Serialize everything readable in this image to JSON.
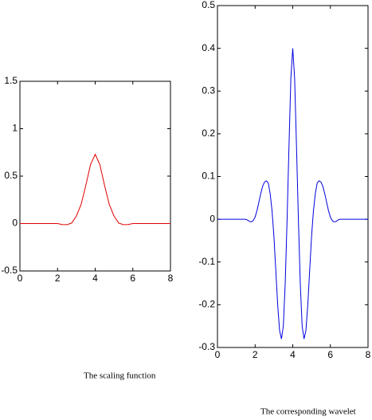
{
  "chart_data": [
    {
      "type": "line",
      "caption": "The scaling function",
      "xlim": [
        0,
        8
      ],
      "xticks": [
        0,
        2,
        4,
        6,
        8
      ],
      "ylim": [
        -0.5,
        1.5
      ],
      "yticks": [
        -0.5,
        0,
        0.5,
        1,
        1.5
      ],
      "series": [
        {
          "color": "#e00000",
          "x": [
            0,
            0.25,
            0.5,
            0.75,
            1,
            1.25,
            1.5,
            1.75,
            2,
            2.25,
            2.5,
            2.75,
            3,
            3.25,
            3.5,
            3.75,
            4,
            4.25,
            4.5,
            4.75,
            5,
            5.25,
            5.5,
            5.75,
            6,
            6.25,
            6.5,
            6.75,
            7,
            7.25,
            7.5,
            7.75,
            8
          ],
          "values": [
            0,
            0,
            0,
            0,
            0,
            0,
            0,
            0,
            0,
            -0.01,
            -0.012,
            0.005,
            0.08,
            0.2,
            0.4,
            0.62,
            0.73,
            0.62,
            0.4,
            0.2,
            0.08,
            0.005,
            -0.012,
            -0.01,
            0,
            0,
            0,
            0,
            0,
            0,
            0,
            0,
            0
          ]
        }
      ]
    },
    {
      "type": "line",
      "caption": "The corresponding wavelet",
      "xlim": [
        0,
        8
      ],
      "xticks": [
        0,
        2,
        4,
        6,
        8
      ],
      "ylim": [
        -0.3,
        0.5
      ],
      "yticks": [
        -0.3,
        -0.2,
        -0.1,
        0,
        0.1,
        0.2,
        0.3,
        0.4,
        0.5
      ],
      "series": [
        {
          "color": "#0000e0",
          "x": [
            0,
            0.5,
            1,
            1.5,
            1.6,
            1.7,
            1.8,
            1.9,
            2.0,
            2.1,
            2.2,
            2.3,
            2.4,
            2.5,
            2.6,
            2.7,
            2.8,
            2.9,
            3.0,
            3.1,
            3.2,
            3.3,
            3.4,
            3.5,
            3.6,
            3.7,
            3.8,
            3.9,
            4.0,
            4.1,
            4.2,
            4.3,
            4.4,
            4.5,
            4.6,
            4.7,
            4.8,
            4.9,
            5.0,
            5.1,
            5.2,
            5.3,
            5.4,
            5.5,
            5.6,
            5.7,
            5.8,
            5.9,
            6.0,
            6.1,
            6.2,
            6.3,
            6.4,
            6.5,
            7,
            7.5,
            8
          ],
          "values": [
            0,
            0,
            0,
            0,
            -0.002,
            -0.005,
            -0.006,
            -0.003,
            0.005,
            0.02,
            0.04,
            0.06,
            0.077,
            0.087,
            0.09,
            0.085,
            0.06,
            0.02,
            -0.04,
            -0.12,
            -0.2,
            -0.26,
            -0.28,
            -0.25,
            -0.15,
            0,
            0.17,
            0.33,
            0.4,
            0.33,
            0.17,
            0,
            -0.15,
            -0.25,
            -0.28,
            -0.26,
            -0.2,
            -0.12,
            -0.04,
            0.02,
            0.06,
            0.085,
            0.09,
            0.087,
            0.077,
            0.06,
            0.04,
            0.02,
            0.005,
            -0.003,
            -0.006,
            -0.005,
            -0.002,
            0,
            0,
            0,
            0
          ]
        }
      ]
    }
  ]
}
